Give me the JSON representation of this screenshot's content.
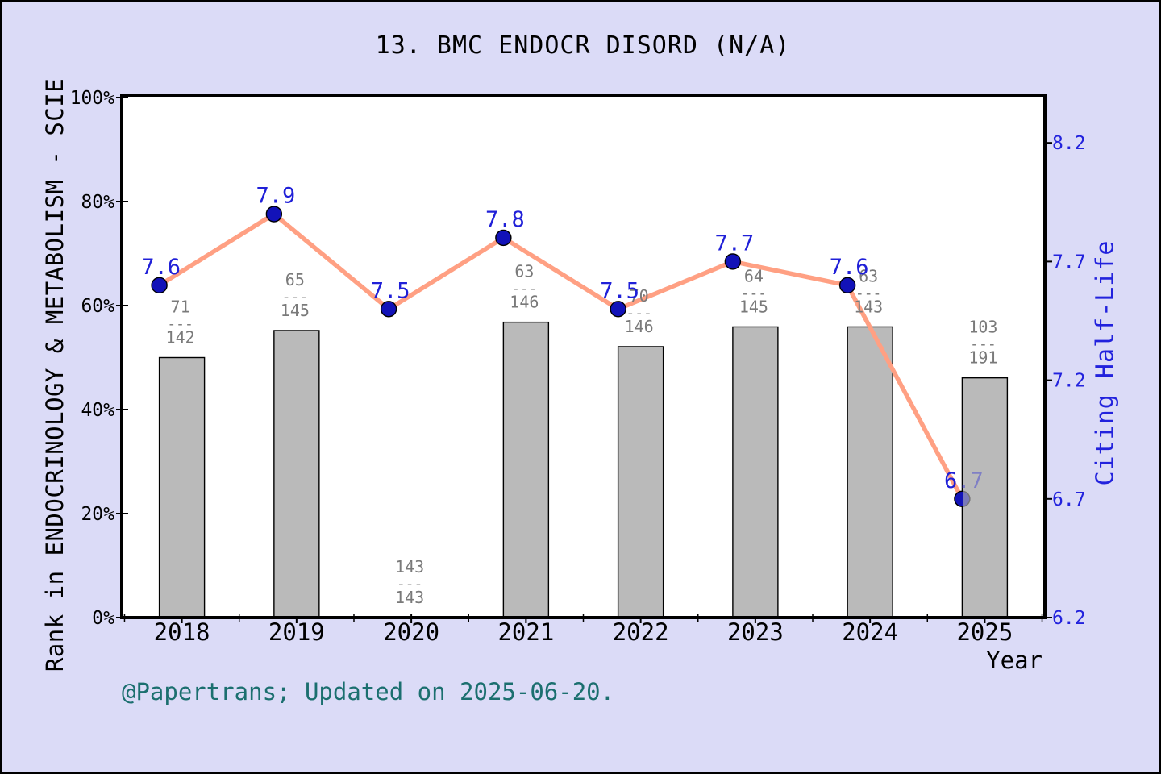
{
  "title": "13. BMC ENDOCR DISORD (N/A)",
  "footer": "@Papertrans; Updated on 2025-06-20.",
  "colors": {
    "background": "#dbdbf7",
    "plot_background": "#ffffff",
    "frame": "#000000",
    "bar_fill": "#bababa",
    "bar_stroke": "#000000",
    "line": "#ffa083",
    "marker_fill": "#1212b8",
    "marker_stroke": "#000000",
    "value_label": "#2020d8",
    "right_axis_text": "#2222dd",
    "left_axis_text": "#000000",
    "fraction_text": "#7a7a7a",
    "footer_text": "#1b6f6f"
  },
  "chart_data": {
    "type": "combo bar+line",
    "categories": [
      "2018",
      "2019",
      "2020",
      "2021",
      "2022",
      "2023",
      "2024",
      "2025"
    ],
    "series": [
      {
        "name": "Rank in ENDOCRINOLOGY & METABOLISM - SCIE",
        "type": "bar",
        "axis": "left",
        "values_pct": [
          50.0,
          55.2,
          0.0,
          56.8,
          52.1,
          55.9,
          55.9,
          46.1
        ],
        "rank_fractions": [
          {
            "num": "71",
            "den": "142"
          },
          {
            "num": "65",
            "den": "145"
          },
          {
            "num": "143",
            "den": "143"
          },
          {
            "num": "63",
            "den": "146"
          },
          {
            "num": "70",
            "den": "146"
          },
          {
            "num": "64",
            "den": "145"
          },
          {
            "num": "63",
            "den": "143"
          },
          {
            "num": "103",
            "den": "191"
          }
        ]
      },
      {
        "name": "Citing Half-Life",
        "type": "line",
        "axis": "right",
        "values": [
          7.6,
          7.9,
          7.5,
          7.8,
          7.5,
          7.7,
          7.6,
          6.7
        ],
        "point_labels": [
          "7.6",
          "7.9",
          "7.5",
          "7.8",
          "7.5",
          "7.7",
          "7.6",
          "6.7"
        ]
      }
    ],
    "left_axis": {
      "label": "Rank in ENDOCRINOLOGY & METABOLISM - SCIE",
      "ticks": [
        "0%",
        "20%",
        "40%",
        "60%",
        "80%",
        "100%"
      ],
      "tick_values": [
        0,
        20,
        40,
        60,
        80,
        100
      ],
      "range": [
        0,
        100
      ]
    },
    "right_axis": {
      "label": "Citing Half-Life",
      "ticks": [
        "6.2",
        "6.7",
        "7.2",
        "7.7",
        "8.2"
      ],
      "tick_values": [
        6.2,
        6.7,
        7.2,
        7.7,
        8.2
      ],
      "range": [
        6.2,
        8.2
      ]
    },
    "x_axis": {
      "label": "Year",
      "ticks": [
        "2018",
        "2019",
        "2020",
        "2021",
        "2022",
        "2023",
        "2024",
        "2025"
      ]
    },
    "grid": false,
    "legend": false
  }
}
